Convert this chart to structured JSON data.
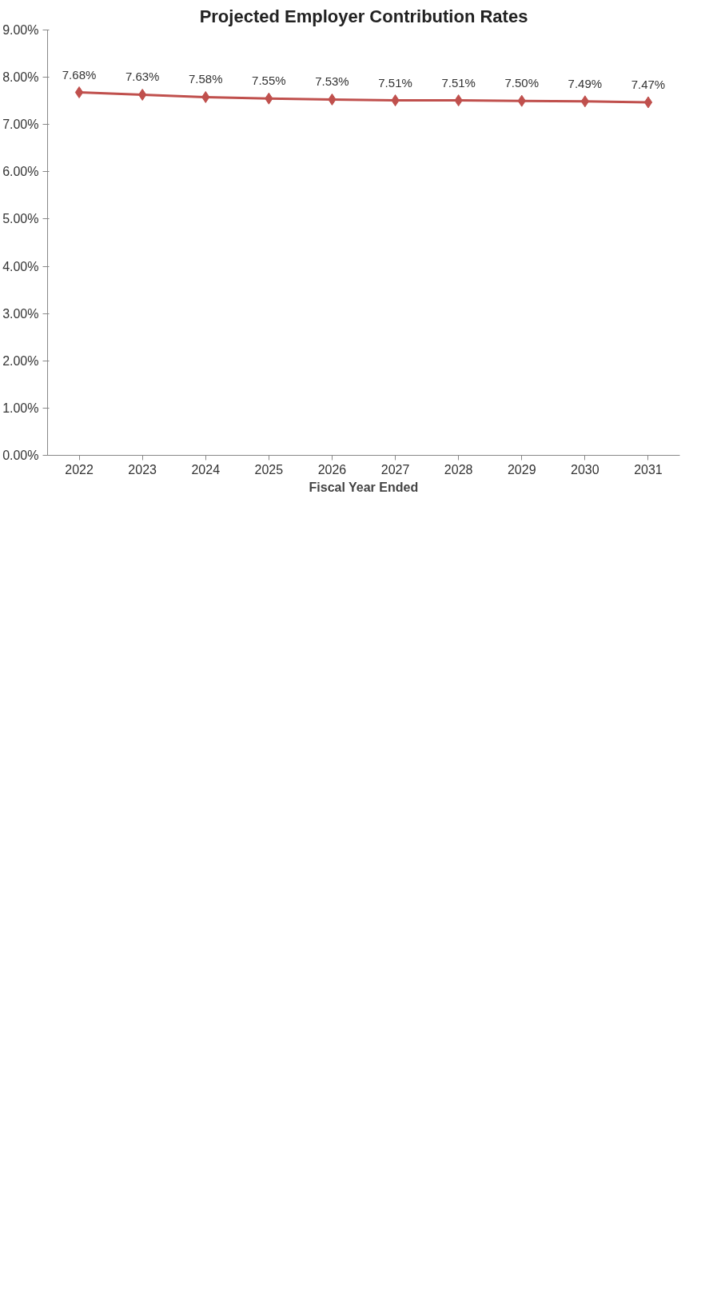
{
  "chart_data": {
    "type": "line",
    "title": "Projected Employer Contribution Rates",
    "xlabel": "Fiscal Year Ended",
    "categories": [
      "2022",
      "2023",
      "2024",
      "2025",
      "2026",
      "2027",
      "2028",
      "2029",
      "2030",
      "2031"
    ],
    "values": [
      7.68,
      7.63,
      7.58,
      7.55,
      7.53,
      7.51,
      7.51,
      7.5,
      7.49,
      7.47
    ],
    "value_labels": [
      "7.68%",
      "7.63%",
      "7.58%",
      "7.55%",
      "7.53%",
      "7.51%",
      "7.51%",
      "7.50%",
      "7.49%",
      "7.47%"
    ],
    "color": "#c0504d",
    "marker": "diamond",
    "line_style": "solid",
    "grid": false,
    "ylim": [
      0,
      9
    ],
    "yticks": [
      {
        "value": 0,
        "label": "0.00%"
      },
      {
        "value": 1,
        "label": "1.00%"
      },
      {
        "value": 2,
        "label": "2.00%"
      },
      {
        "value": 3,
        "label": "3.00%"
      },
      {
        "value": 4,
        "label": "4.00%"
      },
      {
        "value": 5,
        "label": "5.00%"
      },
      {
        "value": 6,
        "label": "6.00%"
      },
      {
        "value": 7,
        "label": "7.00%"
      },
      {
        "value": 8,
        "label": "8.00%"
      },
      {
        "value": 9,
        "label": "9.00%"
      }
    ]
  }
}
